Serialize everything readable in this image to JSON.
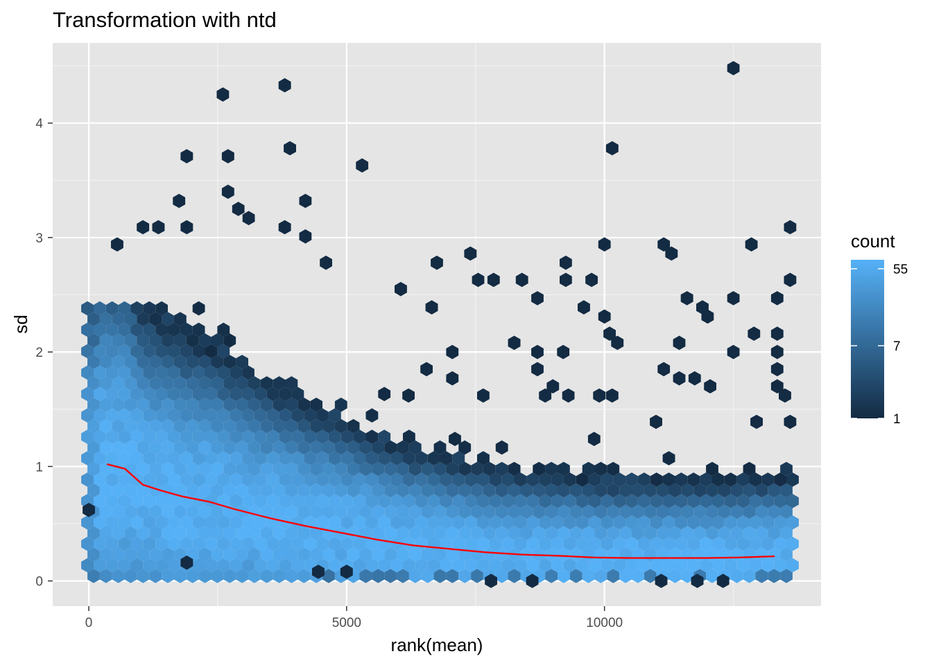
{
  "chart_data": {
    "type": "heatmap",
    "subtype": "hexbin-with-trend-line",
    "title": "Transformation with ntd",
    "xlabel": "rank(mean)",
    "ylabel": "sd",
    "xlim": [
      -700,
      14200
    ],
    "ylim": [
      -0.22,
      4.7
    ],
    "x_ticks": [
      0,
      5000,
      10000
    ],
    "x_tick_labels": [
      "0",
      "5000",
      "10000"
    ],
    "y_ticks": [
      0,
      1,
      2,
      3,
      4
    ],
    "y_tick_labels": [
      "0",
      "1",
      "2",
      "3",
      "4"
    ],
    "grid": true,
    "panel_background": "#E5E5E5",
    "legend": {
      "title": "count",
      "position": "right",
      "scale": "log",
      "breaks": [
        1,
        7,
        55
      ],
      "break_labels": [
        "1",
        "7",
        "55"
      ],
      "range": [
        1,
        70
      ],
      "colors": {
        "low": "#132B43",
        "high": "#56B1F7"
      }
    },
    "trend_line": {
      "color": "#FF0000",
      "x": [
        350,
        700,
        1050,
        1400,
        1800,
        2350,
        2800,
        3500,
        4200,
        4900,
        5600,
        6300,
        7000,
        7700,
        8400,
        9100,
        9800,
        10500,
        11200,
        11900,
        12600,
        13300
      ],
      "y": [
        1.02,
        0.98,
        0.84,
        0.79,
        0.74,
        0.69,
        0.63,
        0.55,
        0.48,
        0.42,
        0.36,
        0.31,
        0.28,
        0.25,
        0.23,
        0.22,
        0.205,
        0.2,
        0.2,
        0.2,
        0.205,
        0.215
      ]
    },
    "outlier_hexes": [
      {
        "x": 12500,
        "y": 4.48
      },
      {
        "x": 3800,
        "y": 4.33
      },
      {
        "x": 2600,
        "y": 4.25
      },
      {
        "x": 3900,
        "y": 3.78
      },
      {
        "x": 10150,
        "y": 3.78
      },
      {
        "x": 1900,
        "y": 3.71
      },
      {
        "x": 2700,
        "y": 3.71
      },
      {
        "x": 5300,
        "y": 3.63
      },
      {
        "x": 2700,
        "y": 3.4
      },
      {
        "x": 4200,
        "y": 3.32
      },
      {
        "x": 1750,
        "y": 3.32
      },
      {
        "x": 2900,
        "y": 3.25
      },
      {
        "x": 3100,
        "y": 3.17
      },
      {
        "x": 1050,
        "y": 3.09
      },
      {
        "x": 1350,
        "y": 3.09
      },
      {
        "x": 1900,
        "y": 3.09
      },
      {
        "x": 3800,
        "y": 3.09
      },
      {
        "x": 13600,
        "y": 3.09
      },
      {
        "x": 4200,
        "y": 3.01
      },
      {
        "x": 550,
        "y": 2.94
      },
      {
        "x": 10000,
        "y": 2.94
      },
      {
        "x": 11150,
        "y": 2.94
      },
      {
        "x": 12850,
        "y": 2.94
      },
      {
        "x": 7400,
        "y": 2.86
      },
      {
        "x": 11300,
        "y": 2.86
      },
      {
        "x": 6750,
        "y": 2.78
      },
      {
        "x": 9250,
        "y": 2.78
      },
      {
        "x": 4600,
        "y": 2.78
      },
      {
        "x": 7550,
        "y": 2.63
      },
      {
        "x": 7850,
        "y": 2.63
      },
      {
        "x": 8400,
        "y": 2.63
      },
      {
        "x": 9250,
        "y": 2.63
      },
      {
        "x": 9750,
        "y": 2.63
      },
      {
        "x": 13600,
        "y": 2.63
      },
      {
        "x": 6050,
        "y": 2.55
      },
      {
        "x": 8700,
        "y": 2.47
      },
      {
        "x": 11600,
        "y": 2.47
      },
      {
        "x": 12500,
        "y": 2.47
      },
      {
        "x": 13350,
        "y": 2.47
      },
      {
        "x": 6650,
        "y": 2.39
      },
      {
        "x": 9600,
        "y": 2.39
      },
      {
        "x": 11900,
        "y": 2.39
      },
      {
        "x": 10000,
        "y": 2.31
      },
      {
        "x": 12000,
        "y": 2.31
      },
      {
        "x": 12900,
        "y": 2.16
      },
      {
        "x": 13350,
        "y": 2.16
      },
      {
        "x": 10100,
        "y": 2.16
      },
      {
        "x": 8250,
        "y": 2.08
      },
      {
        "x": 10250,
        "y": 2.08
      },
      {
        "x": 11450,
        "y": 2.08
      },
      {
        "x": 7050,
        "y": 2.0
      },
      {
        "x": 8700,
        "y": 2.0
      },
      {
        "x": 9200,
        "y": 2.0
      },
      {
        "x": 12500,
        "y": 2.0
      },
      {
        "x": 13350,
        "y": 2.0
      },
      {
        "x": 6550,
        "y": 1.85
      },
      {
        "x": 8700,
        "y": 1.85
      },
      {
        "x": 11150,
        "y": 1.85
      },
      {
        "x": 13350,
        "y": 1.85
      },
      {
        "x": 7050,
        "y": 1.77
      },
      {
        "x": 11450,
        "y": 1.77
      },
      {
        "x": 11750,
        "y": 1.77
      },
      {
        "x": 9000,
        "y": 1.7
      },
      {
        "x": 12050,
        "y": 1.7
      },
      {
        "x": 13350,
        "y": 1.7
      },
      {
        "x": 6200,
        "y": 1.62
      },
      {
        "x": 7650,
        "y": 1.62
      },
      {
        "x": 8850,
        "y": 1.62
      },
      {
        "x": 9300,
        "y": 1.62
      },
      {
        "x": 9900,
        "y": 1.62
      },
      {
        "x": 10150,
        "y": 1.62
      },
      {
        "x": 13500,
        "y": 1.62
      },
      {
        "x": 11000,
        "y": 1.39
      },
      {
        "x": 12950,
        "y": 1.39
      },
      {
        "x": 13600,
        "y": 1.39
      },
      {
        "x": 7100,
        "y": 1.24
      },
      {
        "x": 9800,
        "y": 1.24
      },
      {
        "x": 7800,
        "y": 0.0
      },
      {
        "x": 8600,
        "y": 0.0
      },
      {
        "x": 11100,
        "y": 0.0
      },
      {
        "x": 11800,
        "y": 0.0
      },
      {
        "x": 12300,
        "y": 0.0
      },
      {
        "x": 5000,
        "y": 0.08
      },
      {
        "x": 4450,
        "y": 0.08
      },
      {
        "x": 1900,
        "y": 0.16
      },
      {
        "x": 0,
        "y": 0.62
      }
    ]
  }
}
